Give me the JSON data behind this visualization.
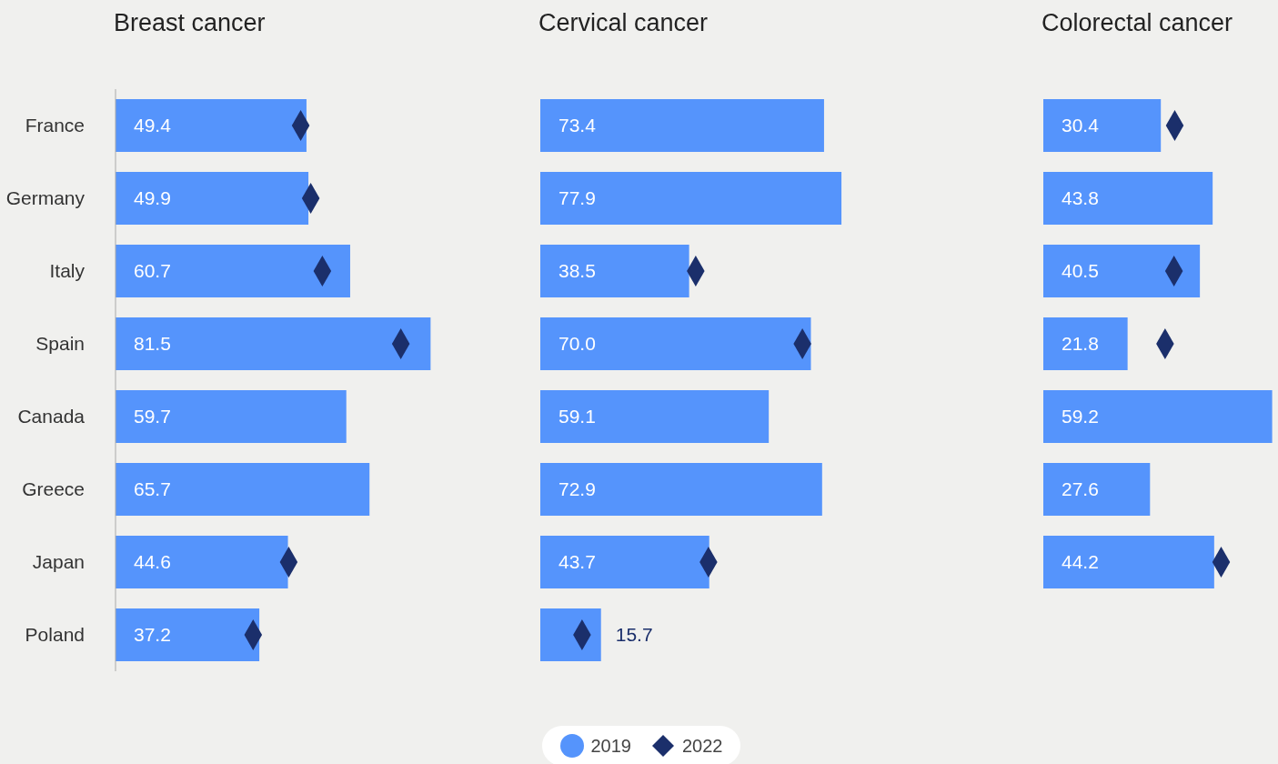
{
  "chart_data": [
    {
      "type": "bar",
      "orientation": "horizontal",
      "title": "Breast cancer",
      "categories": [
        "France",
        "Germany",
        "Italy",
        "Spain",
        "Canada",
        "Greece",
        "Japan",
        "Poland"
      ],
      "legend": "bottom",
      "series": [
        {
          "name": "2019",
          "color": "#5594fc",
          "values": [
            49.4,
            49.9,
            60.7,
            81.5,
            59.7,
            65.7,
            44.6,
            37.2
          ],
          "value_labels": [
            "49.4",
            "49.9",
            "60.7",
            "81.5",
            "59.7",
            "65.7",
            "44.6",
            "37.2"
          ]
        },
        {
          "name": "2022",
          "type": "scatter",
          "marker": "diamond",
          "color": "#1b2f6b",
          "values": [
            47.9,
            50.5,
            53.5,
            73.8,
            null,
            null,
            44.8,
            35.6
          ]
        }
      ]
    },
    {
      "type": "bar",
      "orientation": "horizontal",
      "title": "Cervical cancer",
      "categories": [
        null,
        null,
        null,
        null,
        null,
        null,
        null,
        null
      ],
      "series": [
        {
          "color": "#5594fc",
          "values": [
            73.4,
            77.9,
            38.5,
            70.0,
            59.1,
            72.9,
            43.7,
            15.7
          ],
          "value_labels": [
            "73.4",
            "77.9",
            "38.5",
            "70.0",
            "59.1",
            "72.9",
            "43.7",
            "15.7"
          ]
        },
        {
          "type": "scatter",
          "marker": "diamond",
          "color": "#1b2f6b",
          "values": [
            null,
            null,
            40.2,
            67.8,
            null,
            null,
            43.5,
            10.8
          ]
        }
      ]
    },
    {
      "type": "bar",
      "orientation": "horizontal",
      "title": "Colorectal cancer",
      "categories": [
        null,
        null,
        null,
        null,
        null,
        null,
        null,
        null
      ],
      "series": [
        {
          "color": "#5594fc",
          "values": [
            30.4,
            43.8,
            40.5,
            21.8,
            59.2,
            27.6,
            44.2,
            null
          ],
          "value_labels": [
            "30.4",
            "43.8",
            "40.5",
            "21.8",
            "59.2",
            "27.6",
            "44.2",
            null
          ]
        },
        {
          "type": "scatter",
          "marker": "diamond",
          "color": "#1b2f6b",
          "values": [
            34.0,
            null,
            33.8,
            31.5,
            null,
            null,
            46.0,
            null
          ]
        }
      ]
    }
  ]
}
